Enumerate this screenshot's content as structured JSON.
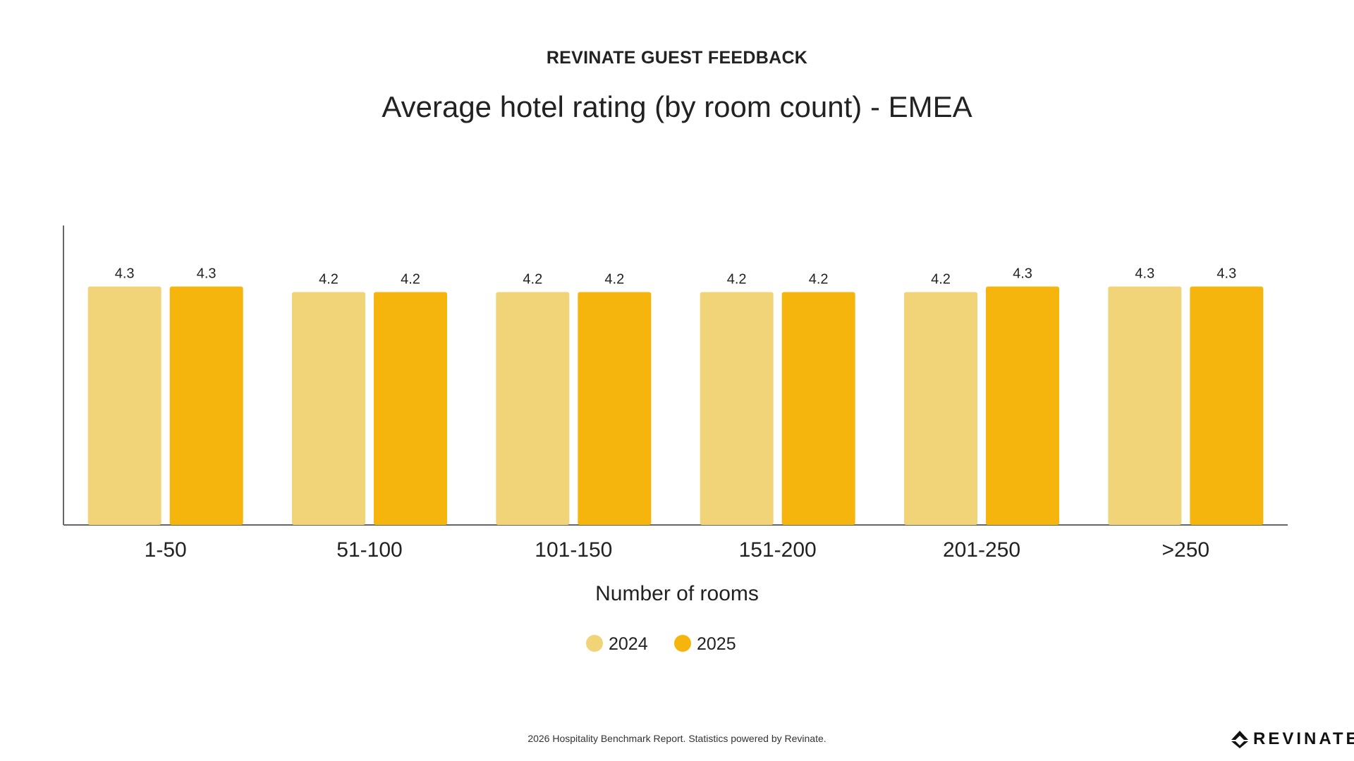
{
  "header": {
    "eyebrow": "REVINATE GUEST FEEDBACK",
    "title": "Average hotel rating (by room count) - EMEA"
  },
  "chart_data": {
    "type": "bar",
    "categories": [
      "1-50",
      "51-100",
      "101-150",
      "151-200",
      "201-250",
      ">250"
    ],
    "series": [
      {
        "name": "2024",
        "values": [
          4.3,
          4.2,
          4.2,
          4.2,
          4.2,
          4.3
        ],
        "color": "#F2D478"
      },
      {
        "name": "2025",
        "values": [
          4.3,
          4.2,
          4.2,
          4.2,
          4.3,
          4.3
        ],
        "color": "#F6B50C"
      }
    ],
    "xlabel": "Number of rooms",
    "ylabel": "",
    "ylim": [
      0,
      5.4
    ],
    "grid": false,
    "legend": "bottom-center"
  },
  "footer": {
    "note": "2026 Hospitality Benchmark Report. Statistics powered by Revinate.",
    "logo_text": "REVINATE"
  }
}
